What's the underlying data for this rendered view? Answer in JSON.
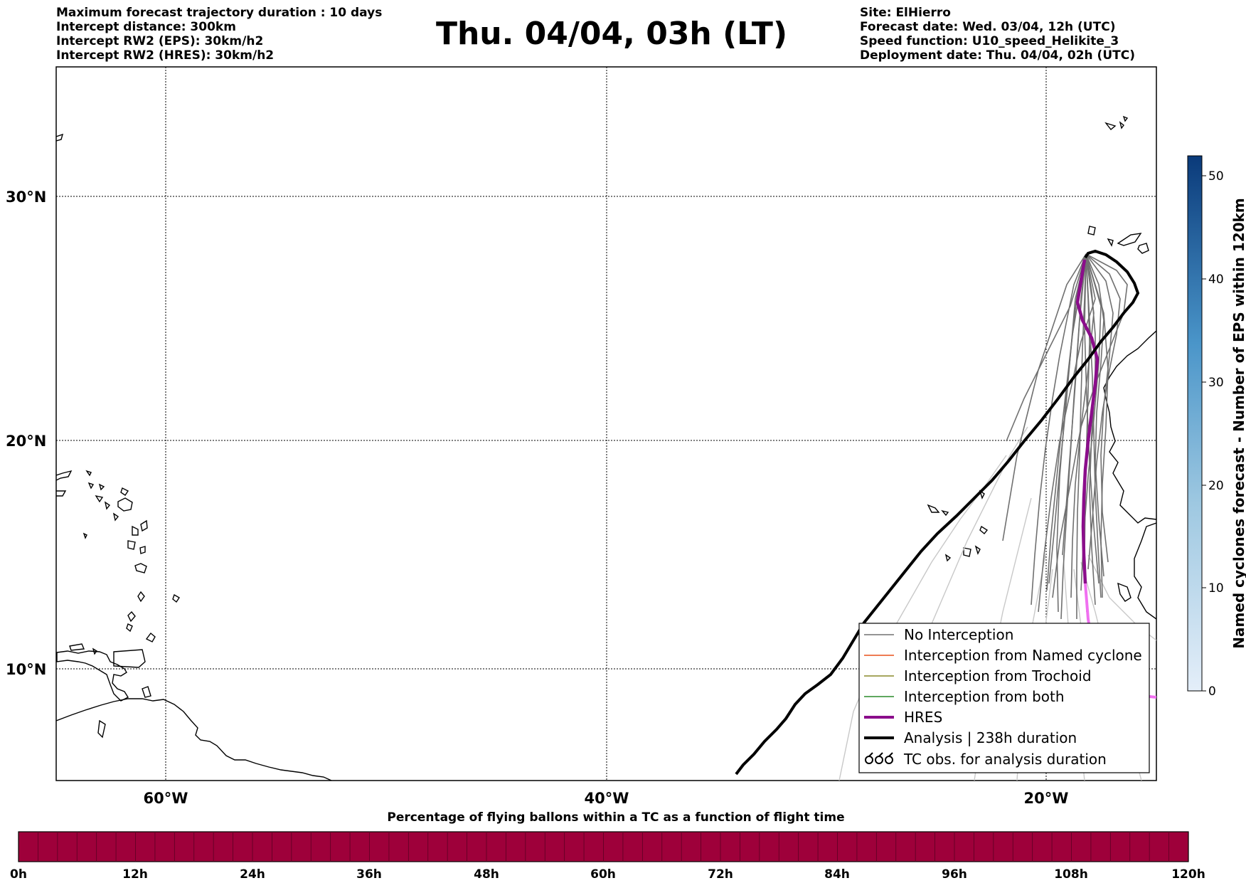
{
  "header": {
    "left_lines": [
      "Maximum forecast trajectory duration : 10 days",
      "Intercept distance: 300km",
      "Intercept RW2 (EPS):  30km/h2",
      "Intercept RW2 (HRES): 30km/h2"
    ],
    "title": "Thu. 04/04, 03h (LT)",
    "right_lines": [
      "Site: ElHierro",
      "Forecast date: Wed. 03/04, 12h (UTC)",
      "Speed function: U10_speed_Helikite_3",
      "Deployment date: Thu. 04/04, 02h (UTC)"
    ]
  },
  "map": {
    "lat_labels": [
      "30°N",
      "20°N",
      "10°N"
    ],
    "lon_labels": [
      "60°W",
      "40°W",
      "20°W"
    ],
    "colors": {
      "ensemble": "#707070",
      "ensemble_faded": "#c8c8c8",
      "hres": "#8b0d8b",
      "hres_after": "#f070f0",
      "analysis": "#000000"
    }
  },
  "legend": {
    "items": [
      {
        "label": "No Interception",
        "color": "#707070",
        "style": "thin"
      },
      {
        "label": "Interception from Named cyclone",
        "color": "#e8501a",
        "style": "thin"
      },
      {
        "label": "Interception from Trochoid",
        "color": "#8a8a2a",
        "style": "thin"
      },
      {
        "label": "Interception from both",
        "color": "#2a8a2a",
        "style": "thin"
      },
      {
        "label": "HRES",
        "color": "#8b0d8b",
        "style": "thick"
      },
      {
        "label": "Analysis | 238h duration",
        "color": "#000000",
        "style": "thick"
      },
      {
        "label": "TC obs. for analysis duration",
        "color": "#000000",
        "style": "symbol"
      }
    ]
  },
  "colorbar_right": {
    "label": "Named cyclones forecast - Number of EPS within 120km",
    "ticks": [
      "0",
      "10",
      "20",
      "30",
      "40",
      "50"
    ]
  },
  "colorbar_bottom": {
    "title": "Percentage of flying ballons within a TC as a function of flight time",
    "fill_color": "#9e003a",
    "ticks": [
      "0h",
      "12h",
      "24h",
      "36h",
      "48h",
      "60h",
      "72h",
      "84h",
      "96h",
      "108h",
      "120h"
    ]
  }
}
